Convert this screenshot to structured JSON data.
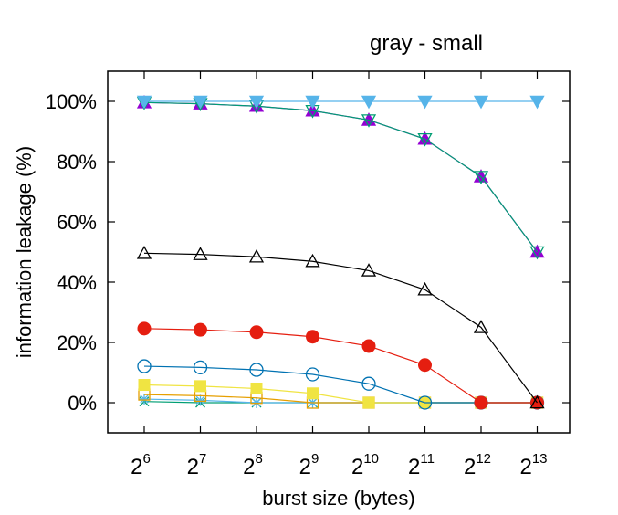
{
  "chart_data": {
    "type": "line",
    "title": "gray - small",
    "xlabel": "burst size (bytes)",
    "ylabel": "information leakage (%)",
    "x_tick_labels": [
      {
        "base": "2",
        "exp": "6"
      },
      {
        "base": "2",
        "exp": "7"
      },
      {
        "base": "2",
        "exp": "8"
      },
      {
        "base": "2",
        "exp": "9"
      },
      {
        "base": "2",
        "exp": "10"
      },
      {
        "base": "2",
        "exp": "11"
      },
      {
        "base": "2",
        "exp": "12"
      },
      {
        "base": "2",
        "exp": "13"
      }
    ],
    "x": [
      64,
      128,
      256,
      512,
      1024,
      2048,
      4096,
      8192
    ],
    "x_scale": "log2",
    "ylim": [
      -10,
      110
    ],
    "y_ticks": [
      0,
      20,
      40,
      60,
      80,
      100
    ],
    "y_tick_labels": [
      "0%",
      "20%",
      "40%",
      "60%",
      "80%",
      "100%"
    ],
    "grid": false,
    "legend": "none",
    "series": [
      {
        "color": "#56b4e9",
        "marker": "triangle-down-filled",
        "values": [
          100,
          100,
          100,
          100,
          100,
          100,
          100,
          100
        ]
      },
      {
        "color": "#009e73",
        "marker": "triangle-down-open",
        "values": [
          99.6,
          99.2,
          98.4,
          96.9,
          93.8,
          87.5,
          75,
          50
        ]
      },
      {
        "color": "#9400d3",
        "marker": "triangle-up-filled",
        "values": [
          99.6,
          99.2,
          98.4,
          96.9,
          93.8,
          87.5,
          75,
          50
        ]
      },
      {
        "color": "#000000",
        "marker": "triangle-up-open",
        "values": [
          49.6,
          49.2,
          48.4,
          46.9,
          43.8,
          37.5,
          25,
          0
        ]
      },
      {
        "color": "#e51e10",
        "marker": "circle-filled",
        "values": [
          24.6,
          24.2,
          23.4,
          21.9,
          18.8,
          12.5,
          0,
          0
        ]
      },
      {
        "color": "#0072b2",
        "marker": "circle-open",
        "values": [
          12.1,
          11.7,
          10.9,
          9.4,
          6.3,
          0,
          0,
          0
        ]
      },
      {
        "color": "#f0e442",
        "marker": "square-filled",
        "values": [
          5.9,
          5.5,
          4.7,
          3.1,
          0,
          0,
          0,
          0
        ]
      },
      {
        "color": "#e69f00",
        "marker": "square-open",
        "values": [
          2.7,
          2.3,
          1.6,
          0,
          0,
          0,
          0,
          0
        ]
      },
      {
        "color": "#56b4e9",
        "marker": "asterisk",
        "values": [
          1.2,
          0.8,
          0,
          0,
          0,
          0,
          0,
          0
        ]
      },
      {
        "color": "#009e73",
        "marker": "cross",
        "values": [
          0.4,
          0,
          0,
          0,
          0,
          0,
          0,
          0
        ]
      }
    ]
  }
}
